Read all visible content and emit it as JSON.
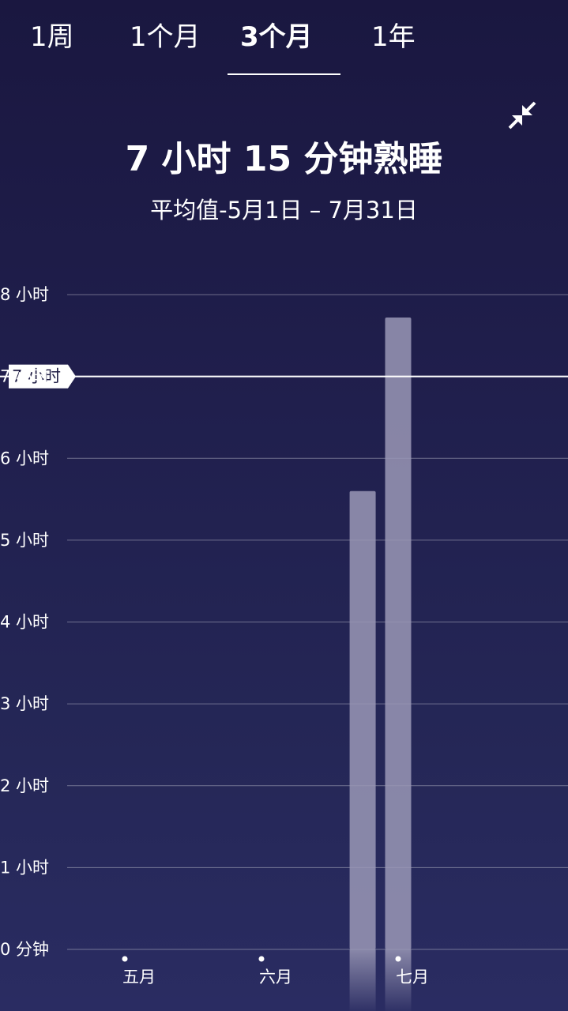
{
  "tabs": [
    {
      "label": "1周",
      "active": false
    },
    {
      "label": "1个月",
      "active": false
    },
    {
      "label": "3个月",
      "active": true
    },
    {
      "label": "1年",
      "active": false
    }
  ],
  "header": {
    "title": "7 小时 15 分钟熟睡",
    "subtitle": "平均值-5月1日 – 7月31日",
    "collapse_icon": "collapse-arrows-icon"
  },
  "chart_data": {
    "type": "bar",
    "title": "7 小时 15 分钟熟睡",
    "subtitle": "平均值-5月1日 – 7月31日",
    "yticks": [
      "0 分钟",
      "1 小时",
      "2 小时",
      "3 小时",
      "4 小时",
      "5 小时",
      "6 小时",
      "7 小时",
      "8 小时"
    ],
    "ylim": [
      0,
      8
    ],
    "goal": {
      "value": 7,
      "label": "7 小时"
    },
    "xticks": [
      {
        "label": "五月",
        "week": 0
      },
      {
        "label": "六月",
        "week": 4.43
      },
      {
        "label": "七月",
        "week": 8.86
      }
    ],
    "series": [
      {
        "values": [
          {
            "week": 7.71,
            "value": 5.6
          },
          {
            "week": 8.86,
            "value": 7.72
          }
        ]
      }
    ],
    "bar_color": "#9a98b6",
    "goal_color": "#ffffff",
    "grid": true
  }
}
